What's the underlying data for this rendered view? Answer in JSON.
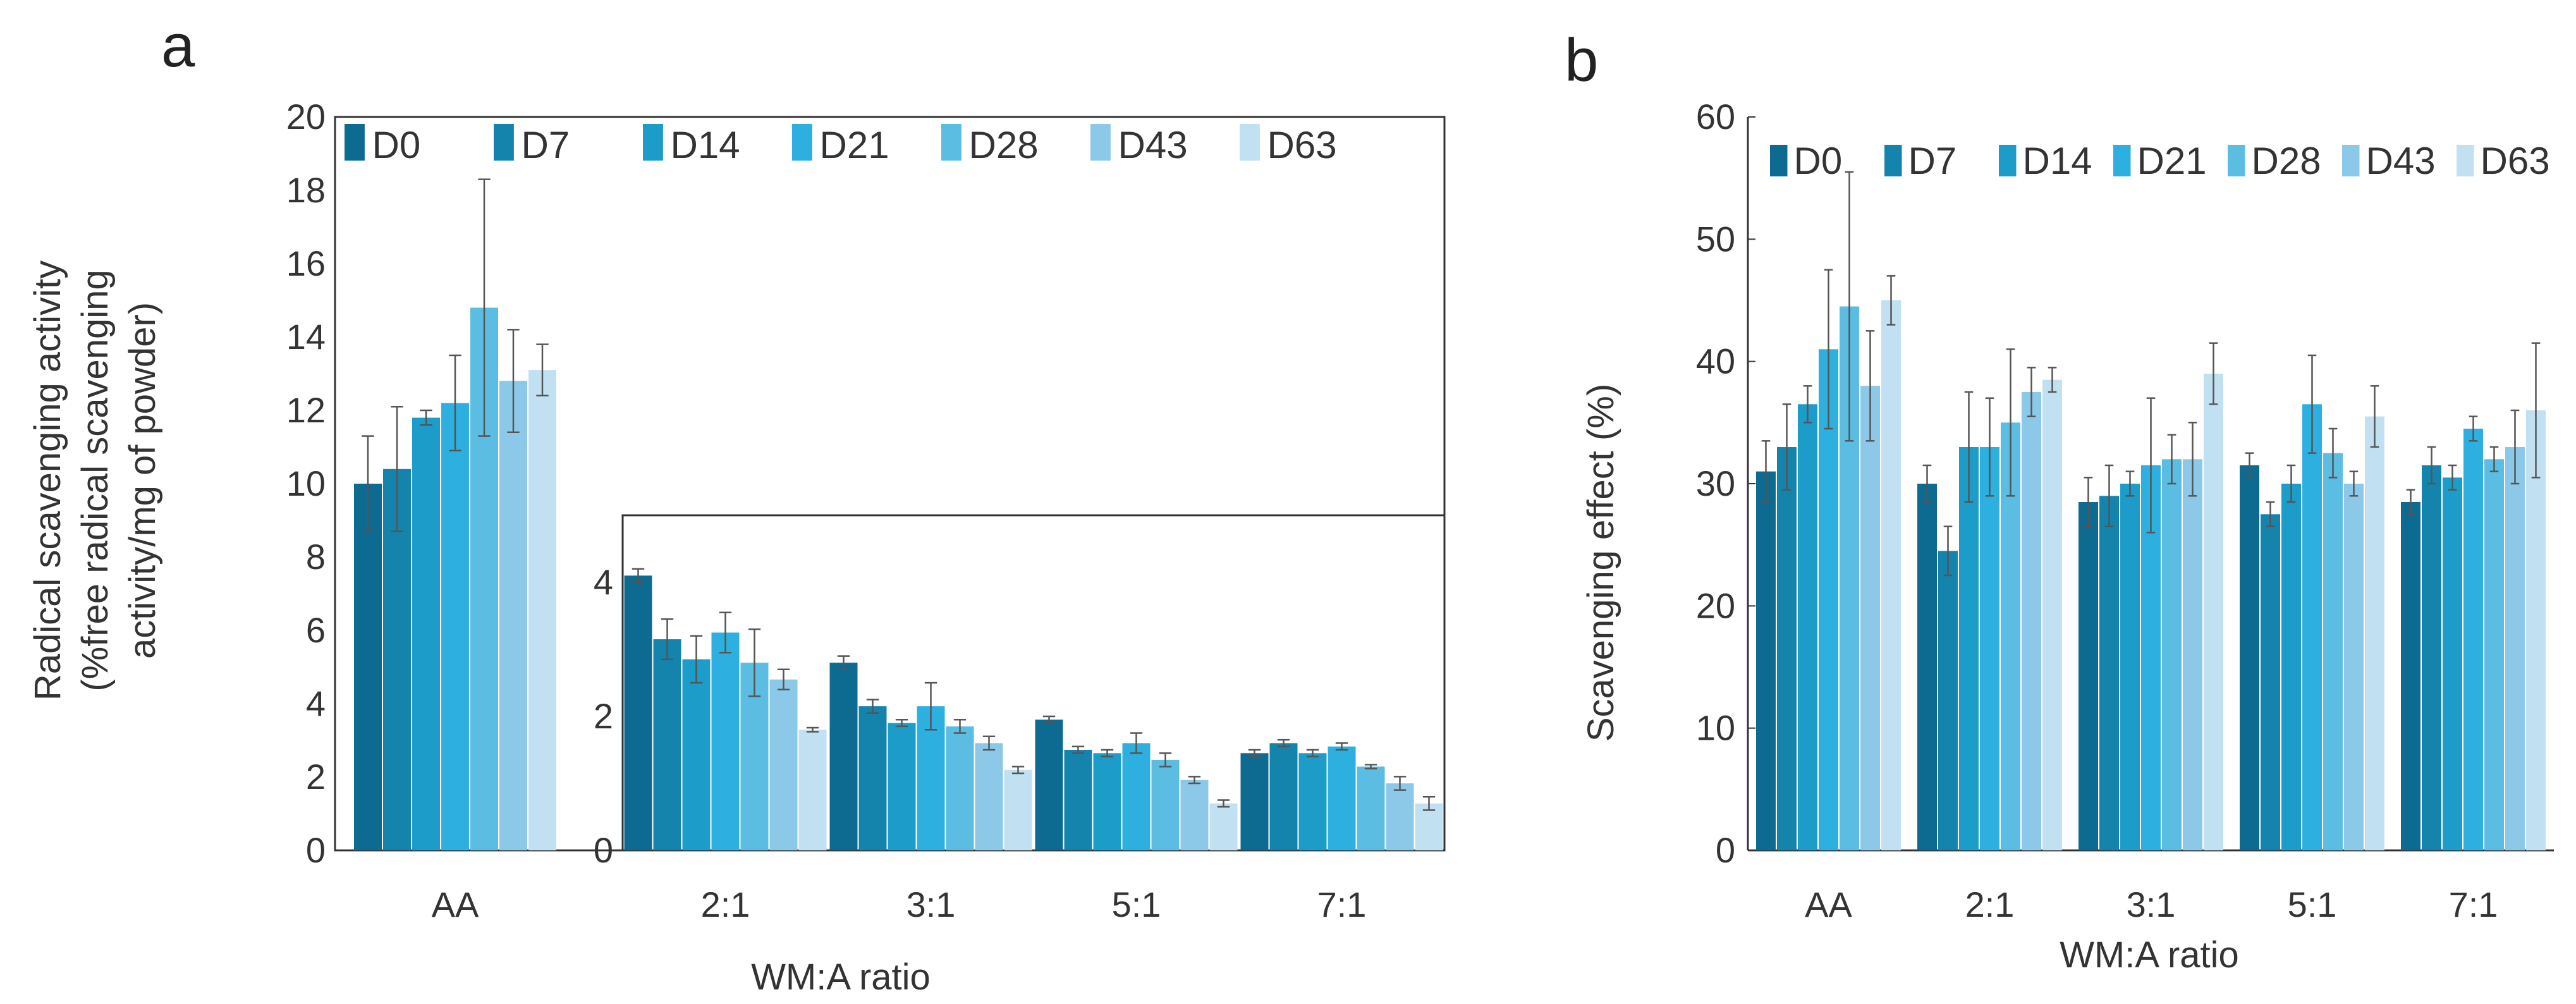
{
  "colors": {
    "D0": "#0d6b92",
    "D7": "#1584ad",
    "D14": "#1c9cc8",
    "D21": "#2db0df",
    "D28": "#5cbde3",
    "D43": "#8cc9e8",
    "D63": "#c1e1f3",
    "axis": "#333333",
    "error": "#555555"
  },
  "chart_data": [
    {
      "panel": "a",
      "type": "bar",
      "subtype": "main",
      "ylabel_lines": [
        "Radical scavenging activity",
        "(%free radical scavenging",
        "activity/mg of powder)"
      ],
      "ylim": [
        0,
        20
      ],
      "yticks": [
        0,
        2,
        4,
        6,
        8,
        10,
        12,
        14,
        16,
        18,
        20
      ],
      "categories": [
        "AA"
      ],
      "legend": [
        "D0",
        "D7",
        "D14",
        "D21",
        "D28",
        "D43",
        "D63"
      ],
      "legend_position": "top",
      "series": [
        {
          "name": "D0",
          "values": [
            10.0
          ],
          "errors": [
            1.3
          ]
        },
        {
          "name": "D7",
          "values": [
            10.4
          ],
          "errors": [
            1.7
          ]
        },
        {
          "name": "D14",
          "values": [
            11.8
          ],
          "errors": [
            0.2
          ]
        },
        {
          "name": "D21",
          "values": [
            12.2
          ],
          "errors": [
            1.3
          ]
        },
        {
          "name": "D28",
          "values": [
            14.8
          ],
          "errors": [
            3.5
          ]
        },
        {
          "name": "D43",
          "values": [
            12.8
          ],
          "errors": [
            1.4
          ]
        },
        {
          "name": "D63",
          "values": [
            13.1
          ],
          "errors": [
            0.7
          ]
        }
      ]
    },
    {
      "panel": "a",
      "type": "bar",
      "subtype": "inset",
      "xlabel": "WM:A ratio",
      "ylim": [
        0,
        5
      ],
      "yticks": [
        0,
        2,
        4
      ],
      "categories": [
        "2:1",
        "3:1",
        "5:1",
        "7:1"
      ],
      "series": [
        {
          "name": "D0",
          "values": [
            4.1,
            2.8,
            1.95,
            1.45
          ],
          "errors": [
            0.1,
            0.1,
            0.05,
            0.05
          ]
        },
        {
          "name": "D7",
          "values": [
            3.15,
            2.15,
            1.5,
            1.6
          ],
          "errors": [
            0.3,
            0.1,
            0.05,
            0.05
          ]
        },
        {
          "name": "D14",
          "values": [
            2.85,
            1.9,
            1.45,
            1.45
          ],
          "errors": [
            0.35,
            0.05,
            0.05,
            0.05
          ]
        },
        {
          "name": "D21",
          "values": [
            3.25,
            2.15,
            1.6,
            1.55
          ],
          "errors": [
            0.3,
            0.35,
            0.15,
            0.05
          ]
        },
        {
          "name": "D28",
          "values": [
            2.8,
            1.85,
            1.35,
            1.25
          ],
          "errors": [
            0.5,
            0.1,
            0.1,
            0.03
          ]
        },
        {
          "name": "D43",
          "values": [
            2.55,
            1.6,
            1.05,
            1.0
          ],
          "errors": [
            0.15,
            0.1,
            0.05,
            0.1
          ]
        },
        {
          "name": "D63",
          "values": [
            1.8,
            1.2,
            0.7,
            0.7
          ],
          "errors": [
            0.03,
            0.05,
            0.05,
            0.1
          ]
        }
      ]
    },
    {
      "panel": "b",
      "type": "bar",
      "ylabel": "Scavenging effect (%)",
      "xlabel": "WM:A ratio",
      "ylim": [
        0,
        60
      ],
      "yticks": [
        0,
        10,
        20,
        30,
        40,
        50,
        60
      ],
      "categories": [
        "AA",
        "2:1",
        "3:1",
        "5:1",
        "7:1"
      ],
      "legend": [
        "D0",
        "D7",
        "D14",
        "D21",
        "D28",
        "D43",
        "D63"
      ],
      "legend_position": "top",
      "series": [
        {
          "name": "D0",
          "values": [
            31,
            30,
            28.5,
            31.5,
            28.5
          ],
          "errors": [
            2.5,
            1.5,
            2,
            1,
            1
          ]
        },
        {
          "name": "D7",
          "values": [
            33,
            24.5,
            29,
            27.5,
            31.5
          ],
          "errors": [
            3.5,
            2,
            2.5,
            1,
            1.5
          ]
        },
        {
          "name": "D14",
          "values": [
            36.5,
            33,
            30,
            30,
            30.5
          ],
          "errors": [
            1.5,
            4.5,
            1,
            1.5,
            1
          ]
        },
        {
          "name": "D21",
          "values": [
            41,
            33,
            31.5,
            36.5,
            34.5
          ],
          "errors": [
            6.5,
            4,
            5.5,
            4,
            1
          ]
        },
        {
          "name": "D28",
          "values": [
            44.5,
            35,
            32,
            32.5,
            32
          ],
          "errors": [
            11,
            6,
            2,
            2,
            1
          ]
        },
        {
          "name": "D43",
          "values": [
            38,
            37.5,
            32,
            30,
            33
          ],
          "errors": [
            4.5,
            2,
            3,
            1,
            3
          ]
        },
        {
          "name": "D63",
          "values": [
            45,
            38.5,
            39,
            35.5,
            36
          ],
          "errors": [
            2,
            1,
            2.5,
            2.5,
            5.5
          ]
        }
      ]
    }
  ],
  "panel_labels": [
    "a",
    "b"
  ]
}
